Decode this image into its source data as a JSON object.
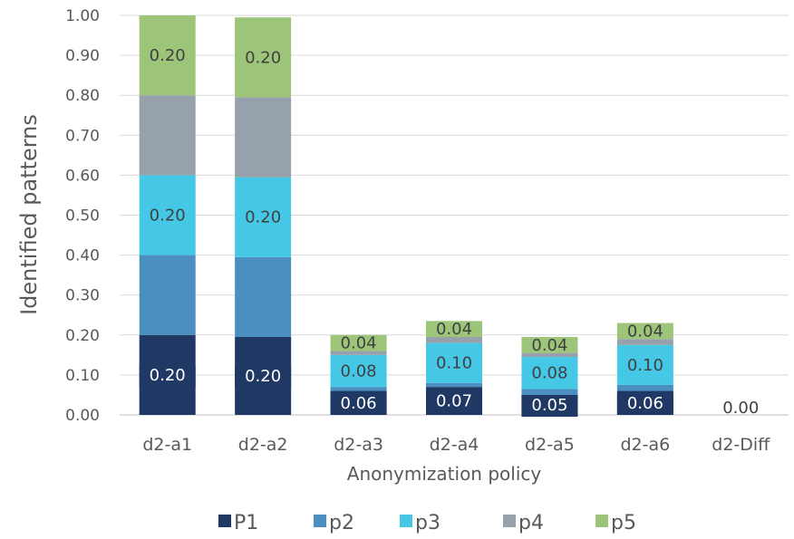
{
  "chart_data": {
    "type": "bar",
    "stacked": true,
    "title": "",
    "xlabel": "Anonymization policy",
    "ylabel": "Identified  patterns",
    "ylim": [
      0,
      1.0
    ],
    "yticks": [
      "0.00",
      "0.10",
      "0.20",
      "0.30",
      "0.40",
      "0.50",
      "0.60",
      "0.70",
      "0.80",
      "0.90",
      "1.00"
    ],
    "grid": true,
    "legend_position": "bottom",
    "categories": [
      "d2-a1",
      "d2-a2",
      "d2-a3",
      "d2-a4",
      "d2-a5",
      "d2-a6",
      "d2-Diff"
    ],
    "series": [
      {
        "name": "P1",
        "color": "#1f3864",
        "values": [
          0.2,
          0.195,
          0.06,
          0.07,
          0.05,
          0.06,
          0.0
        ]
      },
      {
        "name": "p2",
        "color": "#4a8fbf",
        "values": [
          0.2,
          0.2,
          0.01,
          0.01,
          0.015,
          0.015,
          0.0
        ]
      },
      {
        "name": "p3",
        "color": "#45c8e6",
        "values": [
          0.2,
          0.2,
          0.08,
          0.1,
          0.08,
          0.1,
          0.0
        ]
      },
      {
        "name": "p4",
        "color": "#97a1ac",
        "values": [
          0.2,
          0.2,
          0.01,
          0.015,
          0.01,
          0.015,
          0.0
        ]
      },
      {
        "name": "p5",
        "color": "#9dc57a",
        "values": [
          0.2,
          0.2,
          0.04,
          0.04,
          0.04,
          0.04,
          0.0
        ]
      }
    ],
    "data_labels": [
      {
        "category": 0,
        "series": 0,
        "text": "0.20"
      },
      {
        "category": 0,
        "series": 2,
        "text": "0.20"
      },
      {
        "category": 0,
        "series": 4,
        "text": "0.20"
      },
      {
        "category": 1,
        "series": 0,
        "text": "0.20"
      },
      {
        "category": 1,
        "series": 2,
        "text": "0.20"
      },
      {
        "category": 1,
        "series": 4,
        "text": "0.20"
      },
      {
        "category": 2,
        "series": 0,
        "text": "0.06"
      },
      {
        "category": 2,
        "series": 2,
        "text": "0.08"
      },
      {
        "category": 2,
        "series": 4,
        "text": "0.04"
      },
      {
        "category": 3,
        "series": 0,
        "text": "0.07"
      },
      {
        "category": 3,
        "series": 2,
        "text": "0.10"
      },
      {
        "category": 3,
        "series": 4,
        "text": "0.04"
      },
      {
        "category": 4,
        "series": 0,
        "text": "0.05"
      },
      {
        "category": 4,
        "series": 2,
        "text": "0.08"
      },
      {
        "category": 4,
        "series": 4,
        "text": "0.04"
      },
      {
        "category": 5,
        "series": 0,
        "text": "0.06"
      },
      {
        "category": 5,
        "series": 2,
        "text": "0.10"
      },
      {
        "category": 5,
        "series": 4,
        "text": "0.04"
      },
      {
        "category": 6,
        "series": 4,
        "text": "0.00"
      }
    ]
  }
}
